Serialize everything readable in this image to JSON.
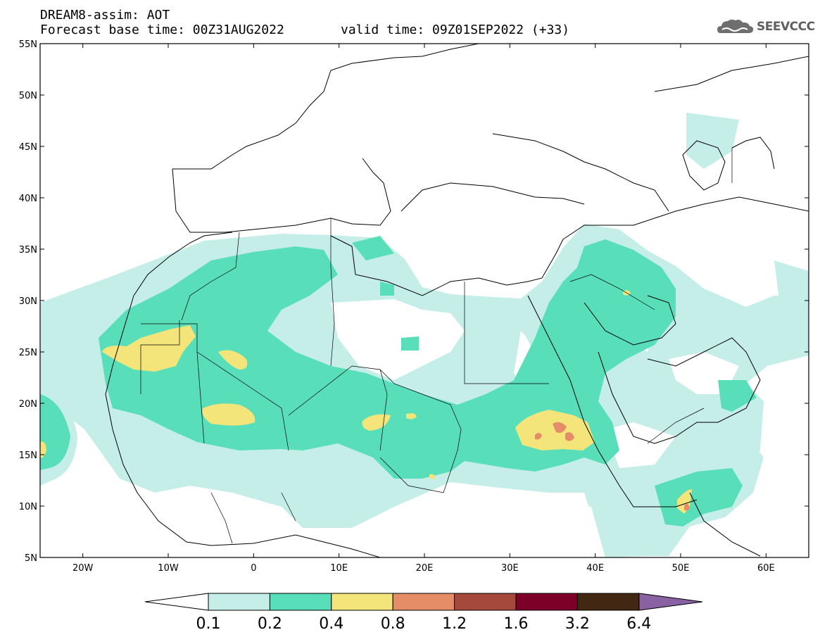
{
  "header": {
    "title": "DREAM8-assim: AOT",
    "base_time": "Forecast base time: 00Z31AUG2022",
    "valid_time": "valid time: 09Z01SEP2022 (+33)"
  },
  "logo": {
    "text": "SEEVCCC",
    "icon": "cloud-logo-icon"
  },
  "map": {
    "lon_range": [
      -25,
      65
    ],
    "lat_range": [
      5,
      55
    ],
    "lat_labels": [
      "55N",
      "50N",
      "45N",
      "40N",
      "35N",
      "30N",
      "25N",
      "20N",
      "15N",
      "10N",
      "5N"
    ],
    "lon_labels": [
      "20W",
      "10W",
      "0",
      "10E",
      "20E",
      "30E",
      "40E",
      "50E",
      "60E"
    ]
  },
  "legend": {
    "labels": [
      "0.1",
      "0.2",
      "0.4",
      "0.8",
      "1.2",
      "1.6",
      "3.2",
      "6.4"
    ],
    "colors": [
      "#c5eee9",
      "#58dfb9",
      "#f4e57a",
      "#e58d67",
      "#a6493d",
      "#7c0028",
      "#422712"
    ],
    "over_color": "#8a62a4",
    "under_color": "#ffffff"
  }
}
